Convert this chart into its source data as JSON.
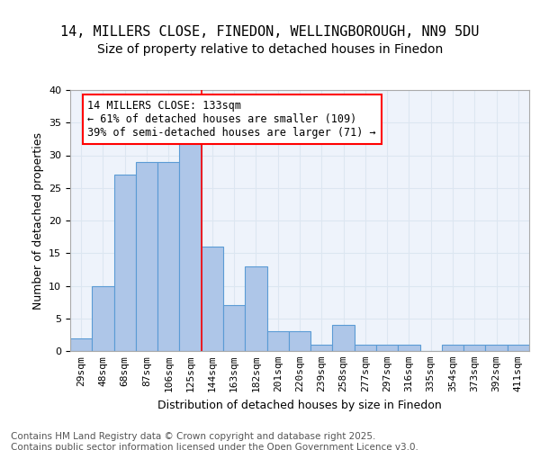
{
  "title_line1": "14, MILLERS CLOSE, FINEDON, WELLINGBOROUGH, NN9 5DU",
  "title_line2": "Size of property relative to detached houses in Finedon",
  "xlabel": "Distribution of detached houses by size in Finedon",
  "ylabel": "Number of detached properties",
  "categories": [
    "29sqm",
    "48sqm",
    "68sqm",
    "87sqm",
    "106sqm",
    "125sqm",
    "144sqm",
    "163sqm",
    "182sqm",
    "201sqm",
    "220sqm",
    "239sqm",
    "258sqm",
    "277sqm",
    "297sqm",
    "316sqm",
    "335sqm",
    "354sqm",
    "373sqm",
    "392sqm",
    "411sqm"
  ],
  "values": [
    2,
    10,
    27,
    29,
    29,
    32,
    16,
    7,
    13,
    3,
    3,
    1,
    4,
    1,
    1,
    1,
    0,
    1,
    1,
    1,
    1
  ],
  "bar_color": "#aec6e8",
  "bar_edge_color": "#5b9bd5",
  "grid_color": "#dce6f1",
  "background_color": "#eef3fb",
  "red_line_x": 5.5,
  "annotation_text": "14 MILLERS CLOSE: 133sqm\n← 61% of detached houses are smaller (109)\n39% of semi-detached houses are larger (71) →",
  "annotation_box_color": "white",
  "annotation_edge_color": "red",
  "ylim": [
    0,
    40
  ],
  "yticks": [
    0,
    5,
    10,
    15,
    20,
    25,
    30,
    35,
    40
  ],
  "footer_text": "Contains HM Land Registry data © Crown copyright and database right 2025.\nContains public sector information licensed under the Open Government Licence v3.0.",
  "title_fontsize": 11,
  "subtitle_fontsize": 10,
  "axis_label_fontsize": 9,
  "tick_fontsize": 8,
  "annotation_fontsize": 8.5,
  "footer_fontsize": 7.5
}
